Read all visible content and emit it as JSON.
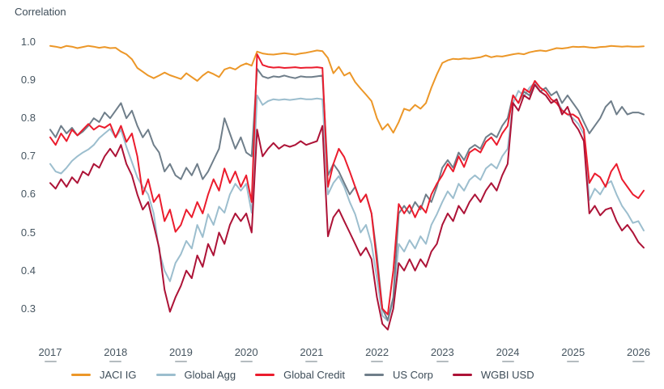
{
  "title": "Correlation",
  "colors": {
    "jaci_ig": "#ec9728",
    "global_agg": "#9cbece",
    "global_credit": "#eb1c2d",
    "us_corp": "#6f7e8a",
    "wgbi_usd": "#ad1337",
    "text": "#3d4c58",
    "tick_text": "#465560"
  },
  "y_axis": {
    "tick_labels": [
      "1.0",
      "0.9",
      "0.8",
      "0.7",
      "0.6",
      "0.5",
      "0.4",
      "0.3"
    ],
    "tick_values": [
      1.0,
      0.9,
      0.8,
      0.7,
      0.6,
      0.5,
      0.4,
      0.3
    ]
  },
  "x_axis": {
    "tick_labels": [
      "2017",
      "2018",
      "2019",
      "2020",
      "2021",
      "2022",
      "2023",
      "2024",
      "2025",
      "2026"
    ],
    "tick_years": [
      2017,
      2018,
      2019,
      2020,
      2021,
      2022,
      2023,
      2024,
      2025,
      2026
    ]
  },
  "chart_data": {
    "type": "line",
    "title": "Correlation",
    "ylabel": "Correlation",
    "ylim": [
      0.24,
      1.02
    ],
    "x_start": "2017-01",
    "x_end": "2026-02",
    "frequency": "monthly",
    "grid": false,
    "legend_position": "bottom",
    "series": [
      {
        "name": "JACI IG",
        "color": "#ec9728",
        "values": [
          0.99,
          0.988,
          0.985,
          0.99,
          0.988,
          0.984,
          0.987,
          0.99,
          0.988,
          0.985,
          0.987,
          0.984,
          0.985,
          0.975,
          0.968,
          0.955,
          0.932,
          0.922,
          0.912,
          0.905,
          0.912,
          0.92,
          0.913,
          0.908,
          0.903,
          0.918,
          0.908,
          0.898,
          0.912,
          0.922,
          0.916,
          0.908,
          0.928,
          0.933,
          0.928,
          0.938,
          0.944,
          0.938,
          0.975,
          0.97,
          0.968,
          0.967,
          0.969,
          0.971,
          0.969,
          0.967,
          0.97,
          0.972,
          0.975,
          0.978,
          0.976,
          0.958,
          0.918,
          0.935,
          0.912,
          0.92,
          0.895,
          0.878,
          0.862,
          0.845,
          0.8,
          0.77,
          0.785,
          0.762,
          0.79,
          0.825,
          0.82,
          0.835,
          0.825,
          0.84,
          0.88,
          0.915,
          0.945,
          0.952,
          0.956,
          0.955,
          0.957,
          0.956,
          0.958,
          0.96,
          0.965,
          0.96,
          0.963,
          0.962,
          0.965,
          0.968,
          0.97,
          0.968,
          0.973,
          0.976,
          0.978,
          0.976,
          0.98,
          0.984,
          0.983,
          0.985,
          0.988,
          0.987,
          0.988,
          0.986,
          0.985,
          0.987,
          0.988,
          0.99,
          0.989,
          0.988,
          0.989,
          0.988,
          0.988,
          0.989
        ]
      },
      {
        "name": "Global Agg",
        "color": "#9cbece",
        "values": [
          0.68,
          0.66,
          0.655,
          0.67,
          0.688,
          0.7,
          0.71,
          0.718,
          0.73,
          0.748,
          0.76,
          0.772,
          0.75,
          0.77,
          0.725,
          0.685,
          0.645,
          0.62,
          0.6,
          0.55,
          0.452,
          0.4,
          0.372,
          0.42,
          0.443,
          0.478,
          0.458,
          0.52,
          0.488,
          0.548,
          0.52,
          0.568,
          0.552,
          0.6,
          0.628,
          0.61,
          0.628,
          0.552,
          0.86,
          0.835,
          0.845,
          0.85,
          0.848,
          0.85,
          0.848,
          0.85,
          0.852,
          0.85,
          0.85,
          0.852,
          0.85,
          0.6,
          0.63,
          0.648,
          0.62,
          0.58,
          0.548,
          0.5,
          0.52,
          0.47,
          0.38,
          0.282,
          0.268,
          0.32,
          0.47,
          0.45,
          0.48,
          0.458,
          0.49,
          0.47,
          0.52,
          0.548,
          0.58,
          0.608,
          0.59,
          0.628,
          0.61,
          0.638,
          0.65,
          0.638,
          0.668,
          0.68,
          0.668,
          0.7,
          0.72,
          0.84,
          0.872,
          0.858,
          0.88,
          0.893,
          0.87,
          0.86,
          0.84,
          0.848,
          0.822,
          0.81,
          0.8,
          0.785,
          0.758,
          0.585,
          0.615,
          0.6,
          0.625,
          0.635,
          0.6,
          0.57,
          0.55,
          0.525,
          0.53,
          0.505
        ]
      },
      {
        "name": "Global Credit",
        "color": "#eb1c2d",
        "values": [
          0.75,
          0.73,
          0.76,
          0.74,
          0.77,
          0.755,
          0.77,
          0.785,
          0.77,
          0.78,
          0.775,
          0.785,
          0.75,
          0.78,
          0.738,
          0.76,
          0.7,
          0.6,
          0.64,
          0.58,
          0.6,
          0.53,
          0.56,
          0.502,
          0.52,
          0.56,
          0.54,
          0.58,
          0.55,
          0.6,
          0.64,
          0.61,
          0.668,
          0.63,
          0.66,
          0.62,
          0.65,
          0.58,
          0.968,
          0.94,
          0.935,
          0.933,
          0.934,
          0.932,
          0.933,
          0.934,
          0.932,
          0.933,
          0.933,
          0.934,
          0.932,
          0.62,
          0.68,
          0.72,
          0.698,
          0.66,
          0.62,
          0.58,
          0.6,
          0.55,
          0.42,
          0.3,
          0.285,
          0.4,
          0.575,
          0.55,
          0.572,
          0.54,
          0.57,
          0.552,
          0.6,
          0.628,
          0.65,
          0.68,
          0.66,
          0.7,
          0.672,
          0.71,
          0.72,
          0.71,
          0.738,
          0.75,
          0.73,
          0.76,
          0.78,
          0.86,
          0.84,
          0.878,
          0.868,
          0.898,
          0.88,
          0.87,
          0.85,
          0.84,
          0.82,
          0.81,
          0.81,
          0.8,
          0.77,
          0.63,
          0.655,
          0.645,
          0.62,
          0.66,
          0.68,
          0.64,
          0.62,
          0.6,
          0.59,
          0.61
        ]
      },
      {
        "name": "US Corp",
        "color": "#6f7e8a",
        "values": [
          0.77,
          0.75,
          0.78,
          0.76,
          0.775,
          0.755,
          0.765,
          0.78,
          0.8,
          0.79,
          0.815,
          0.8,
          0.82,
          0.84,
          0.8,
          0.82,
          0.78,
          0.75,
          0.77,
          0.73,
          0.71,
          0.66,
          0.68,
          0.65,
          0.64,
          0.67,
          0.65,
          0.68,
          0.64,
          0.66,
          0.69,
          0.72,
          0.8,
          0.76,
          0.72,
          0.75,
          0.71,
          0.7,
          0.93,
          0.91,
          0.905,
          0.91,
          0.908,
          0.912,
          0.908,
          0.905,
          0.91,
          0.908,
          0.908,
          0.91,
          0.912,
          0.65,
          0.68,
          0.66,
          0.63,
          0.6,
          0.62,
          0.58,
          0.6,
          0.55,
          0.44,
          0.3,
          0.27,
          0.33,
          0.55,
          0.57,
          0.55,
          0.58,
          0.56,
          0.6,
          0.58,
          0.62,
          0.67,
          0.69,
          0.67,
          0.71,
          0.69,
          0.72,
          0.73,
          0.72,
          0.75,
          0.76,
          0.75,
          0.78,
          0.8,
          0.86,
          0.84,
          0.87,
          0.86,
          0.888,
          0.87,
          0.88,
          0.86,
          0.87,
          0.84,
          0.86,
          0.84,
          0.82,
          0.79,
          0.76,
          0.78,
          0.8,
          0.83,
          0.845,
          0.81,
          0.83,
          0.81,
          0.815,
          0.815,
          0.81
        ]
      },
      {
        "name": "WGBI USD",
        "color": "#ad1337",
        "values": [
          0.63,
          0.615,
          0.64,
          0.62,
          0.645,
          0.63,
          0.66,
          0.65,
          0.68,
          0.67,
          0.7,
          0.72,
          0.7,
          0.73,
          0.68,
          0.65,
          0.6,
          0.56,
          0.58,
          0.52,
          0.46,
          0.35,
          0.292,
          0.33,
          0.36,
          0.4,
          0.38,
          0.44,
          0.41,
          0.47,
          0.44,
          0.5,
          0.47,
          0.52,
          0.55,
          0.53,
          0.55,
          0.5,
          0.77,
          0.7,
          0.72,
          0.735,
          0.72,
          0.73,
          0.725,
          0.73,
          0.74,
          0.73,
          0.735,
          0.74,
          0.78,
          0.49,
          0.54,
          0.56,
          0.53,
          0.5,
          0.47,
          0.44,
          0.46,
          0.43,
          0.33,
          0.26,
          0.245,
          0.3,
          0.42,
          0.4,
          0.43,
          0.4,
          0.43,
          0.41,
          0.45,
          0.47,
          0.52,
          0.55,
          0.53,
          0.57,
          0.55,
          0.58,
          0.6,
          0.58,
          0.61,
          0.63,
          0.61,
          0.65,
          0.68,
          0.84,
          0.82,
          0.86,
          0.85,
          0.888,
          0.87,
          0.86,
          0.84,
          0.85,
          0.81,
          0.83,
          0.79,
          0.77,
          0.74,
          0.55,
          0.57,
          0.545,
          0.56,
          0.565,
          0.53,
          0.505,
          0.52,
          0.5,
          0.475,
          0.46
        ]
      }
    ]
  },
  "legend": {
    "items": [
      {
        "label": "JACI IG",
        "color": "#ec9728"
      },
      {
        "label": "Global Agg",
        "color": "#9cbece"
      },
      {
        "label": "Global Credit",
        "color": "#eb1c2d"
      },
      {
        "label": "US Corp",
        "color": "#6f7e8a"
      },
      {
        "label": "WGBI USD",
        "color": "#ad1337"
      }
    ]
  }
}
